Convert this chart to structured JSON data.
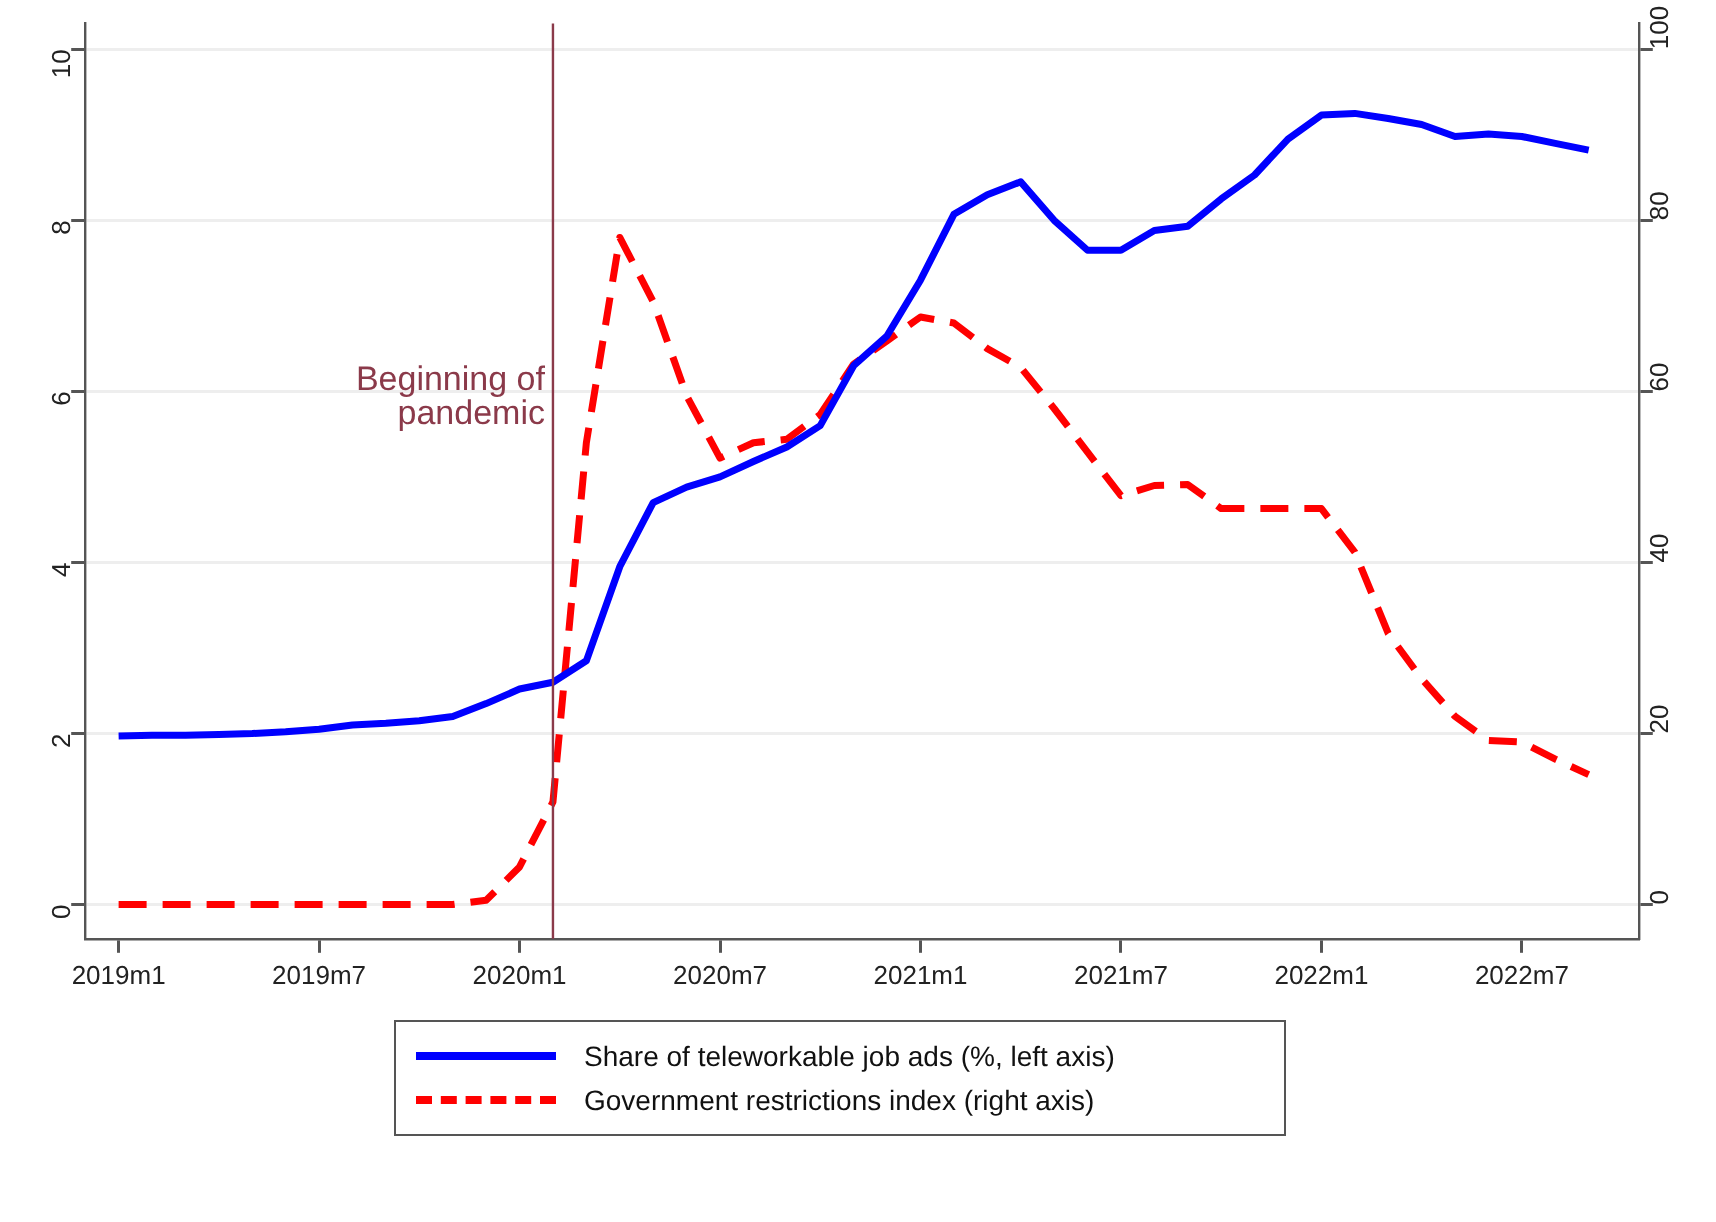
{
  "chart_data": {
    "type": "line",
    "x": [
      "2019-01",
      "2019-02",
      "2019-03",
      "2019-04",
      "2019-05",
      "2019-06",
      "2019-07",
      "2019-08",
      "2019-09",
      "2019-10",
      "2019-11",
      "2019-12",
      "2020-01",
      "2020-02",
      "2020-03",
      "2020-04",
      "2020-05",
      "2020-06",
      "2020-07",
      "2020-08",
      "2020-09",
      "2020-10",
      "2020-11",
      "2020-12",
      "2021-01",
      "2021-02",
      "2021-03",
      "2021-04",
      "2021-05",
      "2021-06",
      "2021-07",
      "2021-08",
      "2021-09",
      "2021-10",
      "2021-11",
      "2021-12",
      "2022-01",
      "2022-02",
      "2022-03",
      "2022-04",
      "2022-05",
      "2022-06",
      "2022-07",
      "2022-08",
      "2022-09"
    ],
    "series": [
      {
        "name": "Share of teleworkable job ads (%, left axis)",
        "color": "#0000ff",
        "line_style": "solid",
        "values": [
          1.97,
          1.98,
          1.98,
          1.99,
          2.0,
          2.02,
          2.05,
          2.1,
          2.12,
          2.15,
          2.2,
          2.35,
          2.52,
          2.6,
          2.85,
          3.95,
          4.7,
          4.88,
          5.0,
          5.18,
          5.35,
          5.6,
          6.3,
          6.65,
          7.3,
          8.07,
          8.3,
          8.45,
          8.0,
          7.65,
          7.65,
          7.88,
          7.93,
          8.25,
          8.53,
          8.95,
          9.23,
          9.25,
          9.19,
          9.12,
          8.98,
          9.01,
          8.98,
          8.9,
          8.82
        ]
      },
      {
        "name": "Government restrictions index (right axis)",
        "color": "#ff0000",
        "line_style": "dashed",
        "axis": "y2",
        "values": [
          0,
          0,
          0,
          0,
          0,
          0,
          0,
          0,
          0,
          0,
          0,
          0.5,
          4.4,
          12,
          54,
          78,
          70.5,
          59.5,
          52.2,
          54,
          54.4,
          57.3,
          63.2,
          65.9,
          68.7,
          68,
          65,
          62.8,
          58,
          52.9,
          47.8,
          49,
          49.1,
          46.3,
          46.3,
          46.3,
          46.3,
          41.2,
          31.7,
          26.4,
          22,
          19.2,
          19,
          17,
          15.2
        ]
      }
    ],
    "xlim": [
      "2018-12-01",
      "2022-10-16"
    ],
    "xticks": [
      {
        "value": "2019-01",
        "label": "2019m1"
      },
      {
        "value": "2019-07",
        "label": "2019m7"
      },
      {
        "value": "2020-01",
        "label": "2020m1"
      },
      {
        "value": "2020-07",
        "label": "2020m7"
      },
      {
        "value": "2021-01",
        "label": "2021m1"
      },
      {
        "value": "2021-07",
        "label": "2021m7"
      },
      {
        "value": "2022-01",
        "label": "2022m1"
      },
      {
        "value": "2022-07",
        "label": "2022m7"
      }
    ],
    "ylim": [
      -0.4,
      10.3
    ],
    "yticks": [
      0,
      2,
      4,
      6,
      8,
      10
    ],
    "y2lim": [
      -4,
      103
    ],
    "y2ticks": [
      0,
      20,
      40,
      60,
      80,
      100
    ],
    "ref_lines": [
      {
        "axis": "x",
        "value": "2020-02",
        "label": "Beginning of pandemic",
        "color": "#8b3a4a"
      }
    ],
    "grid": "y",
    "legend": "bottom",
    "marker": "none"
  }
}
